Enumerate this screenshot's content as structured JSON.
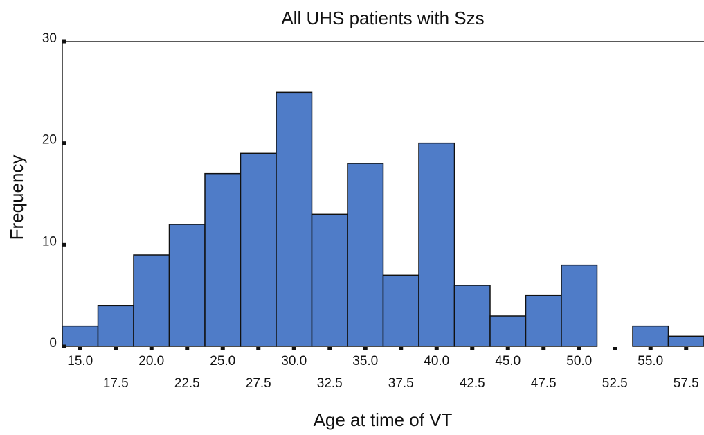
{
  "chart_data": {
    "type": "histogram",
    "title": "All UHS patients with Szs",
    "xlabel": "Age at time of VT",
    "ylabel": "Frequency",
    "bins": [
      13.75,
      16.25,
      18.75,
      21.25,
      23.75,
      26.25,
      28.75,
      31.25,
      33.75,
      36.25,
      38.75,
      41.25,
      43.75,
      46.25,
      48.75,
      51.25,
      53.75,
      56.25,
      58.75
    ],
    "counts": [
      2,
      4,
      9,
      12,
      17,
      19,
      25,
      13,
      18,
      7,
      20,
      6,
      3,
      5,
      8,
      0,
      2,
      1
    ],
    "color": "#4f7cc8",
    "xlim": [
      13.75,
      58.75
    ],
    "xticks": [
      {
        "value": 15,
        "label": "15.0"
      },
      {
        "value": 17.5,
        "label": "17.5"
      },
      {
        "value": 20,
        "label": "20.0"
      },
      {
        "value": 22.5,
        "label": "22.5"
      },
      {
        "value": 25,
        "label": "25.0"
      },
      {
        "value": 27.5,
        "label": "27.5"
      },
      {
        "value": 30,
        "label": "30.0"
      },
      {
        "value": 32.5,
        "label": "32.5"
      },
      {
        "value": 35,
        "label": "35.0"
      },
      {
        "value": 37.5,
        "label": "37.5"
      },
      {
        "value": 40,
        "label": "40.0"
      },
      {
        "value": 42.5,
        "label": "42.5"
      },
      {
        "value": 45,
        "label": "45.0"
      },
      {
        "value": 47.5,
        "label": "47.5"
      },
      {
        "value": 50,
        "label": "50.0"
      },
      {
        "value": 52.5,
        "label": "52.5"
      },
      {
        "value": 55,
        "label": "55.0"
      },
      {
        "value": 57.5,
        "label": "57.5"
      }
    ],
    "ylim": [
      0,
      30
    ],
    "yticks": [
      0,
      10,
      20,
      30
    ]
  }
}
